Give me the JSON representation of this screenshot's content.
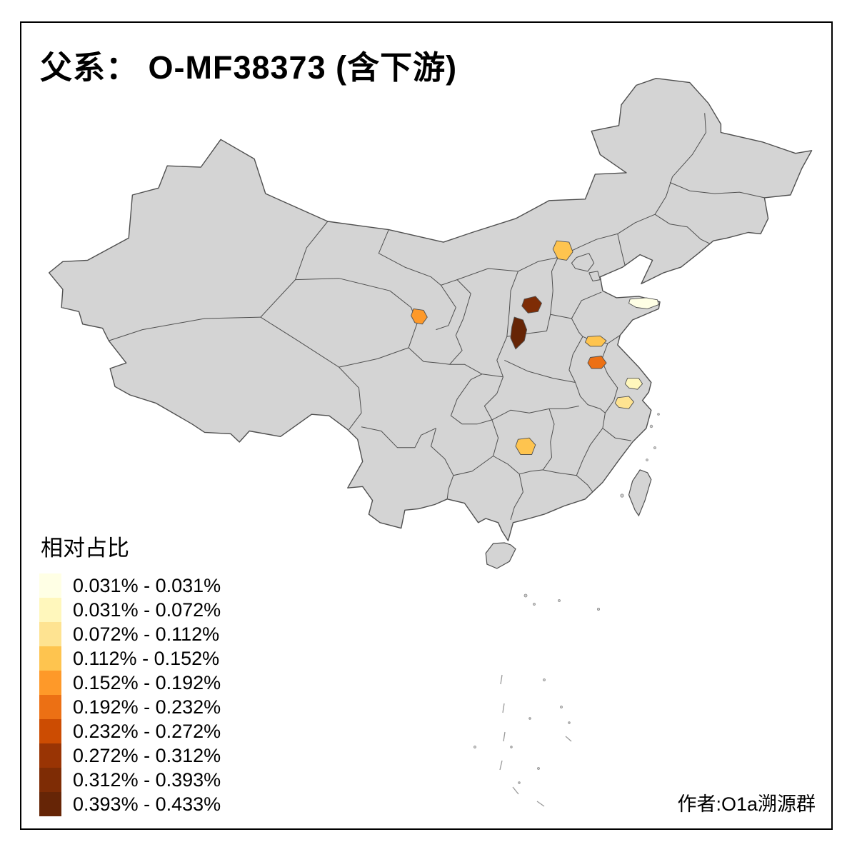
{
  "title": "父系： O-MF38373 (含下游)",
  "author": "作者:O1a溯源群",
  "legend": {
    "title": "相对占比",
    "items": [
      {
        "label": "0.031% - 0.031%",
        "color": "#FFFFE5"
      },
      {
        "label": "0.031% - 0.072%",
        "color": "#FFF7BC"
      },
      {
        "label": "0.072% - 0.112%",
        "color": "#FEE391"
      },
      {
        "label": "0.112% - 0.152%",
        "color": "#FEC44F"
      },
      {
        "label": "0.152% - 0.192%",
        "color": "#FE9929"
      },
      {
        "label": "0.192% - 0.232%",
        "color": "#EC7014"
      },
      {
        "label": "0.232% - 0.272%",
        "color": "#CC4C02"
      },
      {
        "label": "0.272% - 0.312%",
        "color": "#993404"
      },
      {
        "label": "0.312% - 0.393%",
        "color": "#7E2C05"
      },
      {
        "label": "0.393% - 0.433%",
        "color": "#662506"
      }
    ]
  },
  "map": {
    "land_color": "#D4D4D4",
    "boundary_color": "#4F4F4F",
    "background": "#FFFFFF",
    "highlighted_regions": [
      {
        "id": "north-hebei",
        "color": "#FEC44F"
      },
      {
        "id": "central-gansu",
        "color": "#FE9929"
      },
      {
        "id": "central-shanxi",
        "color": "#7E2C05"
      },
      {
        "id": "southwest-shanxi",
        "color": "#662506"
      },
      {
        "id": "shandong-peninsula",
        "color": "#FFFFE5"
      },
      {
        "id": "northwest-jiangsu",
        "color": "#FEC44F"
      },
      {
        "id": "north-anhui",
        "color": "#EC7014"
      },
      {
        "id": "south-jiangsu",
        "color": "#FFF7BC"
      },
      {
        "id": "north-zhejiang",
        "color": "#FEE391"
      },
      {
        "id": "central-hunan",
        "color": "#FEC44F"
      }
    ]
  }
}
